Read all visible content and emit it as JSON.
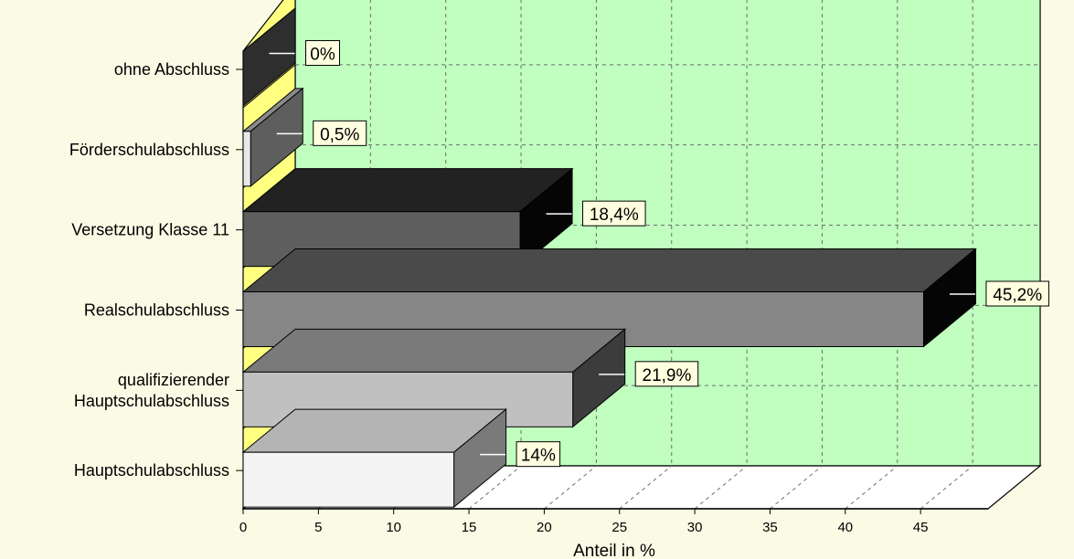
{
  "chart_data": {
    "type": "bar",
    "orientation": "horizontal",
    "style": "3d",
    "categories": [
      [
        "ohne Abschluss"
      ],
      [
        "Förderschulabschluss"
      ],
      [
        "Versetzung Klasse 11"
      ],
      [
        "Realschulabschluss"
      ],
      [
        "qualifizierender",
        "Hauptschulabschluss"
      ],
      [
        "Hauptschulabschluss"
      ]
    ],
    "values": [
      0,
      0.5,
      18.4,
      45.2,
      21.9,
      14
    ],
    "data_labels": [
      "0%",
      "0,5%",
      "18,4%",
      "45,2%",
      "21,9%",
      "14%"
    ],
    "xlabel": "Anteil in %",
    "ylabel": "",
    "xlim": [
      0,
      50
    ],
    "x_ticks": [
      0,
      5,
      10,
      15,
      20,
      25,
      30,
      35,
      40,
      45
    ],
    "x_tick_labels": [
      "0",
      "5",
      "10",
      "15",
      "20",
      "25",
      "30",
      "35",
      "40",
      "45"
    ],
    "grid": true,
    "legend": false,
    "colors": {
      "background": "#fbfbe5",
      "back_wall": "#c0ffc0",
      "side_wall": "#ffff80",
      "floor": "#ffffff",
      "grid": "#6e6e6e",
      "label_box": "#ffffe0",
      "bars": [
        {
          "front": "#222222",
          "top": "#1a1a1a",
          "side": "#2e2e2e"
        },
        {
          "front": "#e8e8e8",
          "top": "#8a8a8a",
          "side": "#5e5e5e"
        },
        {
          "front": "#5e5e5e",
          "top": "#222222",
          "side": "#050505"
        },
        {
          "front": "#868686",
          "top": "#4a4a4a",
          "side": "#050505"
        },
        {
          "front": "#c0c0c0",
          "top": "#7a7a7a",
          "side": "#3c3c3c"
        },
        {
          "front": "#f4f4f4",
          "top": "#b4b4b4",
          "side": "#7a7a7a"
        }
      ]
    }
  }
}
